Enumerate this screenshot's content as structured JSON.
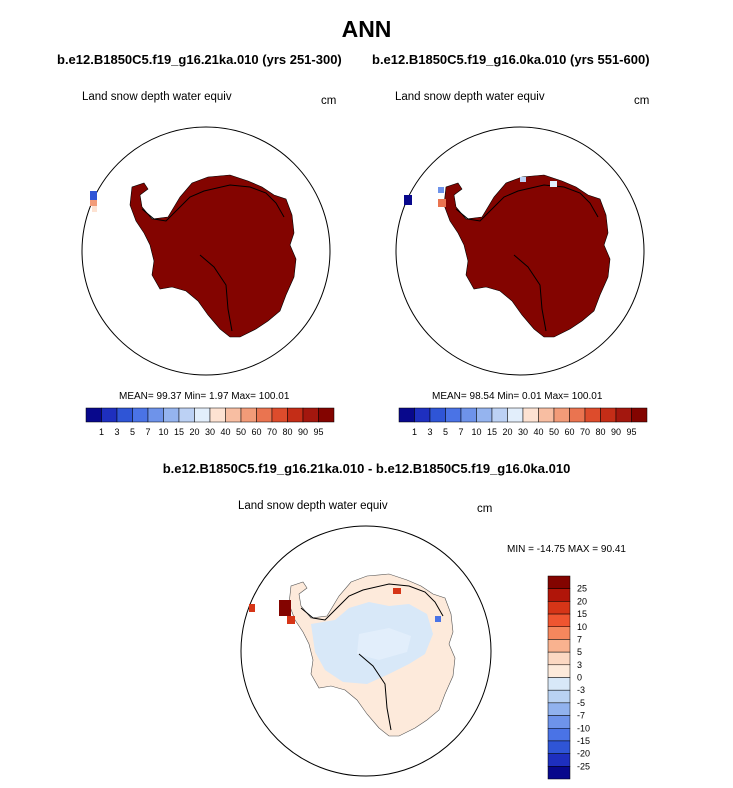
{
  "title": "ANN",
  "cases": {
    "left": "b.e12.B1850C5.f19_g16.21ka.010 (yrs 251-300)",
    "right": "b.e12.B1850C5.f19_g16.0ka.010 (yrs 551-600)"
  },
  "panels": {
    "left": {
      "variable": "Land snow depth water equiv",
      "units": "cm",
      "stats": "MEAN=  99.37  Min=   1.97  Max= 100.01"
    },
    "right": {
      "variable": "Land snow depth water equiv",
      "units": "cm",
      "stats": "MEAN=  98.54  Min=   0.01  Max= 100.01"
    },
    "diff": {
      "variable": "Land snow depth water equiv",
      "units": "cm",
      "stats": "MIN = -14.75 MAX =  90.41"
    }
  },
  "diff_title": "b.e12.B1850C5.f19_g16.21ka.010 - b.e12.B1850C5.f19_g16.0ka.010",
  "colorbar_main": {
    "labels": [
      "1",
      "3",
      "5",
      "7",
      "10",
      "15",
      "20",
      "30",
      "40",
      "50",
      "60",
      "70",
      "80",
      "90",
      "95"
    ],
    "colors": [
      "#08088c",
      "#1e2fbf",
      "#2f55d6",
      "#4a73e6",
      "#6e93ea",
      "#95b4ef",
      "#bcd1f4",
      "#e2eefb",
      "#fde2d2",
      "#f8bea2",
      "#f29b78",
      "#ea7450",
      "#dd4c2c",
      "#c42d17",
      "#a3170e",
      "#830400"
    ]
  },
  "colorbar_diff": {
    "labels": [
      "25",
      "20",
      "15",
      "10",
      "7",
      "5",
      "3",
      "0",
      "-3",
      "-5",
      "-7",
      "-10",
      "-15",
      "-20",
      "-25"
    ],
    "colors": [
      "#830400",
      "#b01509",
      "#d63517",
      "#ef5530",
      "#f5875d",
      "#f9b28f",
      "#fcd8c2",
      "#fdeadb",
      "#d8e8f8",
      "#b9d2f3",
      "#91b2ee",
      "#6e93ea",
      "#4a73e6",
      "#2f55d6",
      "#1e2fbf",
      "#08088c"
    ]
  }
}
